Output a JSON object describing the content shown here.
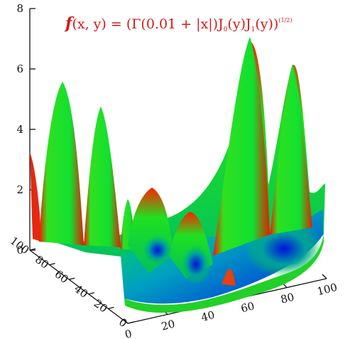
{
  "chart_data": {
    "type": "surface",
    "title": {
      "f": "f",
      "body_1": "(x, y) = (Γ(0.01 + |x|)J",
      "sub_0": "0",
      "body_2": "(y)J",
      "sub_1": "1",
      "body_3": "(y))",
      "exponent": "(1/2)"
    },
    "z_axis": {
      "ticks": [
        "0",
        "2",
        "4",
        "6",
        "8"
      ],
      "range": [
        0,
        8
      ]
    },
    "y_axis": {
      "ticks": [
        "0",
        "20",
        "40",
        "60",
        "80",
        "100"
      ],
      "range": [
        0,
        100
      ]
    },
    "x_axis": {
      "ticks": [
        "0",
        "20",
        "40",
        "60",
        "80",
        "100"
      ],
      "range": [
        0,
        100
      ]
    },
    "colormap": [
      "#ff0000",
      "#00ff00",
      "#0000ff"
    ],
    "peaks": [
      {
        "x": 0,
        "y": 20,
        "z": 3.2
      },
      {
        "x": 0,
        "y": 80,
        "z": 5.6
      },
      {
        "x": 0,
        "y": 60,
        "z": 4.7
      },
      {
        "x": 10,
        "y": 40,
        "z": 2.1
      },
      {
        "x": 40,
        "y": 50,
        "z": 2.0
      },
      {
        "x": 75,
        "y": 25,
        "z": 7.0
      },
      {
        "x": 85,
        "y": 10,
        "z": 6.2
      },
      {
        "x": 100,
        "y": 20,
        "z": 2.2
      }
    ]
  }
}
